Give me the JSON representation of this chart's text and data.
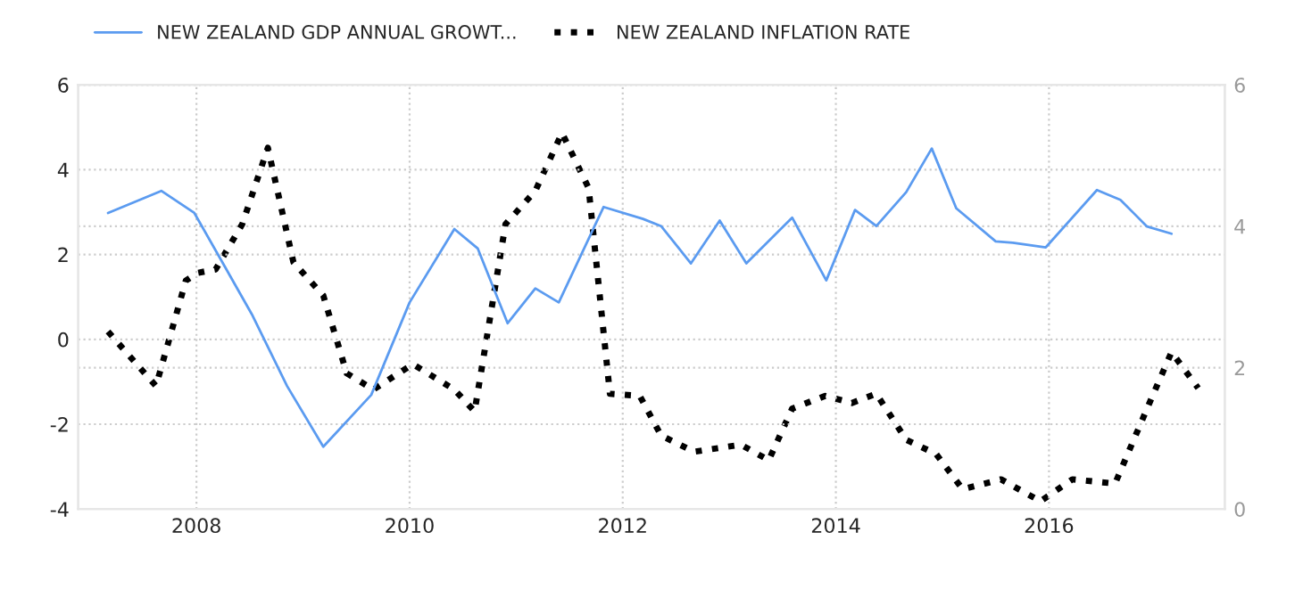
{
  "chart_data": {
    "type": "line",
    "xlim": [
      2006.89,
      2017.65
    ],
    "xticks": [
      2008,
      2010,
      2012,
      2014,
      2016
    ],
    "ylim": [
      -4,
      6
    ],
    "yticks": [
      -4,
      -2,
      0,
      2,
      4,
      6
    ],
    "y2lim": [
      0,
      6
    ],
    "y2ticks": [
      0,
      2,
      4,
      6
    ],
    "grid": true,
    "legend": "top left",
    "series": [
      {
        "name": "NEW ZEALAND GDP ANNUAL GROWT...",
        "color": "#5b9bf0",
        "line_style": "solid",
        "x": [
          2007.17,
          2007.67,
          2007.98,
          2008.52,
          2008.85,
          2009.19,
          2009.64,
          2010.0,
          2010.42,
          2010.64,
          2010.92,
          2011.18,
          2011.4,
          2011.82,
          2012.19,
          2012.36,
          2012.64,
          2012.91,
          2013.16,
          2013.59,
          2013.91,
          2014.18,
          2014.38,
          2014.66,
          2014.9,
          2015.13,
          2015.5,
          2015.66,
          2015.97,
          2016.45,
          2016.67,
          2016.92,
          2017.15
        ],
        "values": [
          2.98,
          3.5,
          2.98,
          0.59,
          -1.1,
          -2.53,
          -1.31,
          0.87,
          2.6,
          2.14,
          0.38,
          1.2,
          0.87,
          3.12,
          2.84,
          2.67,
          1.79,
          2.8,
          1.79,
          2.87,
          1.39,
          3.05,
          2.67,
          3.47,
          4.5,
          3.09,
          2.31,
          2.28,
          2.17,
          3.52,
          3.29,
          2.66,
          2.49
        ]
      },
      {
        "name": "NEW ZEALAND INFLATION RATE",
        "color": "#000000",
        "line_style": "dotted",
        "axis": "y2",
        "x": [
          2007.17,
          2007.62,
          2007.9,
          2008.01,
          2008.18,
          2008.43,
          2008.67,
          2008.91,
          2009.19,
          2009.41,
          2009.66,
          2010.03,
          2010.42,
          2010.61,
          2010.9,
          2011.18,
          2011.43,
          2011.68,
          2011.88,
          2012.16,
          2012.36,
          2012.67,
          2013.11,
          2013.37,
          2013.59,
          2013.9,
          2014.15,
          2014.38,
          2014.66,
          2014.94,
          2015.19,
          2015.55,
          2015.92,
          2016.22,
          2016.62,
          2016.92,
          2017.15,
          2017.4
        ],
        "values": [
          2.51,
          1.74,
          3.23,
          3.34,
          3.39,
          4.03,
          5.11,
          3.49,
          3.02,
          1.92,
          1.69,
          2.05,
          1.69,
          1.38,
          4.03,
          4.5,
          5.32,
          4.54,
          1.63,
          1.6,
          1.04,
          0.81,
          0.91,
          0.69,
          1.42,
          1.6,
          1.5,
          1.63,
          0.98,
          0.78,
          0.28,
          0.42,
          0.11,
          0.42,
          0.36,
          1.42,
          2.22,
          1.71
        ]
      }
    ]
  }
}
